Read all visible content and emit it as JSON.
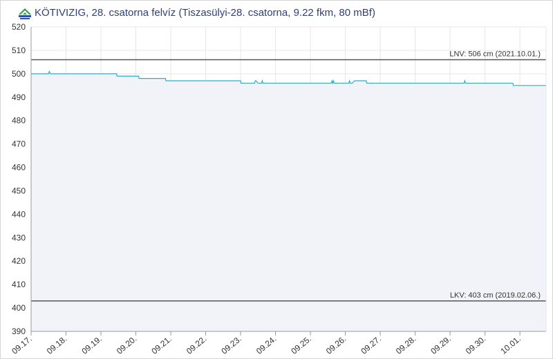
{
  "header": {
    "title": "KÖTIVIZIG, 28. csatorna felvíz (Tiszasülyi-28. csatorna, 9.22 fkm, 80 mBf)",
    "logo_icon": "kotivizig-logo-icon"
  },
  "chart_data": {
    "type": "line",
    "title": "KÖTIVIZIG, 28. csatorna felvíz (Tiszasülyi-28. csatorna, 9.22 fkm, 80 mBf)",
    "xlabel": "",
    "ylabel": "",
    "ylim": [
      390,
      520
    ],
    "y_ticks": [
      390,
      400,
      410,
      420,
      430,
      440,
      450,
      460,
      470,
      480,
      490,
      500,
      510,
      520
    ],
    "xlim": [
      0,
      14.75
    ],
    "x_tick_labels": [
      "09.17.",
      "09.18.",
      "09.19.",
      "09.20.",
      "09.21.",
      "09.22.",
      "09.23.",
      "09.24.",
      "09.25.",
      "09.26.",
      "09.27.",
      "09.28.",
      "09.29.",
      "09.30.",
      "10.01."
    ],
    "grid": true,
    "line_color": "#29b0c4",
    "fill_color": "#f2f3f8",
    "reference_color": "#555555",
    "reference_lines": [
      {
        "label": "LNV: 506 cm (2021.10.01.)",
        "value": 506
      },
      {
        "label": "LKV: 403 cm (2019.02.06.)",
        "value": 403
      }
    ],
    "series": [
      {
        "x": [
          0,
          0.5,
          0.52,
          0.55,
          0.6,
          2.45,
          2.46,
          3.08,
          3.09,
          3.85,
          3.86,
          6.0,
          6.01,
          6.4,
          6.42,
          6.44,
          6.5,
          6.6,
          6.62,
          6.64,
          6.7,
          8.6,
          8.62,
          8.64,
          8.66,
          8.68,
          8.7,
          9.1,
          9.12,
          9.14,
          9.2,
          9.26,
          9.28,
          9.6,
          9.61,
          12.4,
          12.42,
          12.44,
          12.5,
          13.8,
          13.81,
          14.75
        ],
        "y": [
          500,
          500,
          501,
          500,
          500,
          500,
          499,
          499,
          498,
          498,
          497,
          497,
          496,
          496,
          497,
          497,
          496,
          496,
          497,
          496,
          496,
          496,
          497,
          496,
          497,
          496,
          496,
          496,
          497,
          496,
          496,
          497,
          497,
          497,
          496,
          496,
          497,
          496,
          496,
          496,
          495,
          495
        ]
      }
    ]
  }
}
